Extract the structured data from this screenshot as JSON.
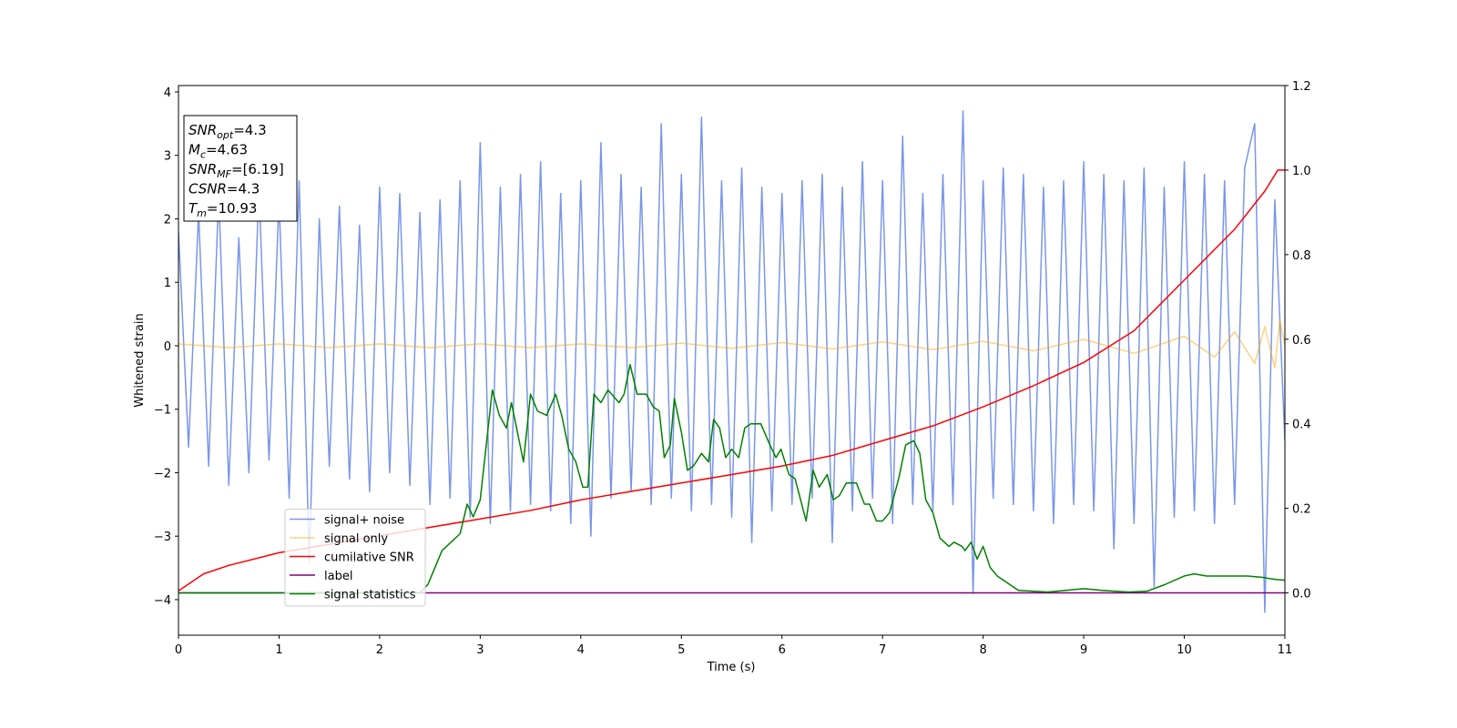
{
  "chart_data": {
    "type": "line",
    "xlabel": "Time (s)",
    "ylabel": "Whitened strain",
    "xlim": [
      0,
      11
    ],
    "xticks": [
      0,
      1,
      2,
      3,
      4,
      5,
      6,
      7,
      8,
      9,
      10,
      11
    ],
    "ylim": [
      -4.56,
      4.1
    ],
    "yticks": [
      {
        "value": -4,
        "label": "−4"
      },
      {
        "value": -3,
        "label": "−3"
      },
      {
        "value": -2,
        "label": "−2"
      },
      {
        "value": -1,
        "label": "−1"
      },
      0,
      1,
      2,
      3,
      4
    ],
    "y2lim": [
      -0.1,
      1.2
    ],
    "y2ticks": [
      {
        "value": 0,
        "label": "0.0"
      },
      0.2,
      0.4,
      0.6,
      0.8,
      {
        "value": 1,
        "label": "1.0"
      },
      1.2
    ],
    "legend": "lower left",
    "annotation": [
      {
        "base": "SNR",
        "sub": "opt",
        "rest": "=4.3"
      },
      {
        "base": "M",
        "sub": "c",
        "rest": "=4.63"
      },
      {
        "base": "SNR",
        "sub": "MF",
        "rest": "=[6.19]"
      },
      {
        "base": "CSNR",
        "rest": "=4.3"
      },
      {
        "base": "T",
        "sub": "m",
        "rest": "=10.93"
      }
    ],
    "series": [
      {
        "name": "signal+ noise",
        "color": "#4169e1",
        "alpha": 0.7,
        "x": [
          0,
          0.1,
          0.2,
          0.3,
          0.4,
          0.5,
          0.6,
          0.7,
          0.8,
          0.9,
          1,
          1.1,
          1.2,
          1.3,
          1.4,
          1.5,
          1.6,
          1.7,
          1.8,
          1.9,
          2,
          2.1,
          2.2,
          2.3,
          2.4,
          2.5,
          2.6,
          2.7,
          2.8,
          2.9,
          3,
          3.1,
          3.2,
          3.3,
          3.4,
          3.5,
          3.6,
          3.7,
          3.8,
          3.9,
          4,
          4.1,
          4.2,
          4.3,
          4.4,
          4.5,
          4.6,
          4.7,
          4.8,
          4.9,
          5,
          5.1,
          5.2,
          5.3,
          5.4,
          5.5,
          5.6,
          5.7,
          5.8,
          5.9,
          6,
          6.1,
          6.2,
          6.3,
          6.4,
          6.5,
          6.6,
          6.7,
          6.8,
          6.9,
          7,
          7.1,
          7.2,
          7.3,
          7.4,
          7.5,
          7.6,
          7.7,
          7.8,
          7.9,
          8,
          8.1,
          8.2,
          8.3,
          8.4,
          8.5,
          8.6,
          8.7,
          8.8,
          8.9,
          9,
          9.1,
          9.2,
          9.3,
          9.4,
          9.5,
          9.6,
          9.7,
          9.8,
          9.9,
          10,
          10.1,
          10.2,
          10.3,
          10.4,
          10.5,
          10.6,
          10.7,
          10.8,
          10.9,
          11
        ],
        "values": [
          1.8,
          -1.6,
          2.1,
          -1.9,
          2.4,
          -2.2,
          1.7,
          -2.0,
          2.5,
          -1.8,
          2.3,
          -2.4,
          2.6,
          -3.4,
          2.0,
          -1.9,
          2.2,
          -2.1,
          1.9,
          -2.3,
          2.5,
          -2.0,
          2.4,
          -2.2,
          2.1,
          -2.5,
          2.3,
          -2.4,
          2.6,
          -2.7,
          3.2,
          -2.8,
          2.5,
          -2.6,
          2.7,
          -2.5,
          2.9,
          -2.6,
          2.4,
          -2.8,
          2.6,
          -3.0,
          3.2,
          -2.4,
          2.7,
          -2.3,
          2.5,
          -2.5,
          3.5,
          -2.4,
          2.7,
          -2.6,
          3.6,
          -2.5,
          2.6,
          -2.7,
          2.8,
          -3.1,
          2.5,
          -2.6,
          2.4,
          -2.5,
          2.6,
          -2.4,
          2.7,
          -3.1,
          2.5,
          -2.6,
          2.9,
          -2.4,
          2.6,
          -2.8,
          3.3,
          -2.5,
          2.4,
          -2.6,
          2.7,
          -2.5,
          3.7,
          -3.9,
          2.6,
          -2.4,
          2.8,
          -2.5,
          2.7,
          -2.6,
          2.5,
          -2.8,
          2.6,
          -2.5,
          2.9,
          -2.6,
          2.7,
          -3.2,
          2.6,
          -2.8,
          2.8,
          -3.8,
          2.5,
          -2.7,
          2.9,
          -2.6,
          2.7,
          -2.8,
          2.6,
          -2.5,
          2.8,
          3.5,
          -4.2,
          2.3,
          -1.5
        ]
      },
      {
        "name": "signal only",
        "color": "#ffa500",
        "alpha": 0.5,
        "x": [
          0,
          0.5,
          1,
          1.5,
          2,
          2.5,
          3,
          3.5,
          4,
          4.5,
          5,
          5.5,
          6,
          6.5,
          7,
          7.5,
          8,
          8.5,
          9,
          9.5,
          10,
          10.3,
          10.5,
          10.7,
          10.8,
          10.9,
          10.95,
          11
        ],
        "values": [
          0.03,
          -0.03,
          0.03,
          -0.03,
          0.03,
          -0.03,
          0.03,
          -0.03,
          0.03,
          -0.03,
          0.04,
          -0.04,
          0.05,
          -0.05,
          0.06,
          -0.06,
          0.07,
          -0.08,
          0.1,
          -0.12,
          0.15,
          -0.18,
          0.22,
          -0.28,
          0.3,
          -0.35,
          0.4,
          0
        ]
      },
      {
        "name": "cumilative SNR",
        "color": "#ff0000",
        "alpha": 1,
        "axis": "y2",
        "x": [
          0,
          0.25,
          0.5,
          1,
          1.5,
          2,
          2.5,
          3,
          3.5,
          4,
          4.5,
          5,
          5.5,
          6,
          6.5,
          7,
          7.5,
          8,
          8.5,
          9,
          9.5,
          10,
          10.5,
          10.8,
          10.93,
          11
        ],
        "values": [
          0.005,
          0.045,
          0.065,
          0.095,
          0.115,
          0.135,
          0.155,
          0.175,
          0.195,
          0.22,
          0.24,
          0.26,
          0.28,
          0.3,
          0.325,
          0.36,
          0.395,
          0.44,
          0.49,
          0.545,
          0.62,
          0.74,
          0.86,
          0.95,
          1.0,
          1.0
        ]
      },
      {
        "name": "label",
        "color": "#800080",
        "alpha": 1,
        "axis": "y2",
        "x": [
          0,
          11
        ],
        "values": [
          0,
          0
        ]
      },
      {
        "name": "signal statistics",
        "color": "#008000",
        "alpha": 1,
        "axis": "y2",
        "x": [
          0,
          2.4,
          2.48,
          2.62,
          2.8,
          2.87,
          2.93,
          3.0,
          3.12,
          3.19,
          3.26,
          3.31,
          3.43,
          3.5,
          3.57,
          3.66,
          3.75,
          3.81,
          3.88,
          3.95,
          4.02,
          4.07,
          4.13,
          4.2,
          4.27,
          4.38,
          4.43,
          4.49,
          4.56,
          4.65,
          4.72,
          4.78,
          4.83,
          4.89,
          4.93,
          5.0,
          5.06,
          5.12,
          5.2,
          5.27,
          5.32,
          5.38,
          5.44,
          5.5,
          5.57,
          5.63,
          5.69,
          5.79,
          5.88,
          5.94,
          5.99,
          6.07,
          6.13,
          6.24,
          6.31,
          6.37,
          6.45,
          6.51,
          6.57,
          6.64,
          6.74,
          6.82,
          6.87,
          6.94,
          7.0,
          7.07,
          7.16,
          7.23,
          7.31,
          7.37,
          7.43,
          7.5,
          7.57,
          7.66,
          7.71,
          7.79,
          7.82,
          7.88,
          7.94,
          8.0,
          8.07,
          8.14,
          8.35,
          8.64,
          9.0,
          9.18,
          9.45,
          9.63,
          9.81,
          10.0,
          10.1,
          10.22,
          10.4,
          10.63,
          10.77,
          10.9,
          11
        ],
        "values": [
          0,
          0,
          0.02,
          0.1,
          0.14,
          0.21,
          0.18,
          0.22,
          0.48,
          0.42,
          0.39,
          0.45,
          0.31,
          0.47,
          0.43,
          0.42,
          0.47,
          0.42,
          0.34,
          0.31,
          0.25,
          0.25,
          0.47,
          0.45,
          0.48,
          0.45,
          0.47,
          0.54,
          0.47,
          0.47,
          0.44,
          0.43,
          0.32,
          0.35,
          0.46,
          0.38,
          0.29,
          0.3,
          0.33,
          0.31,
          0.41,
          0.39,
          0.32,
          0.34,
          0.32,
          0.39,
          0.4,
          0.4,
          0.35,
          0.32,
          0.34,
          0.28,
          0.27,
          0.17,
          0.29,
          0.25,
          0.28,
          0.22,
          0.23,
          0.26,
          0.26,
          0.21,
          0.21,
          0.17,
          0.17,
          0.19,
          0.27,
          0.35,
          0.36,
          0.33,
          0.22,
          0.19,
          0.13,
          0.11,
          0.12,
          0.11,
          0.1,
          0.12,
          0.08,
          0.11,
          0.06,
          0.04,
          0.006,
          0.002,
          0.01,
          0.006,
          0.002,
          0.004,
          0.02,
          0.04,
          0.045,
          0.04,
          0.04,
          0.04,
          0.037,
          0.032,
          0.03
        ]
      }
    ]
  }
}
